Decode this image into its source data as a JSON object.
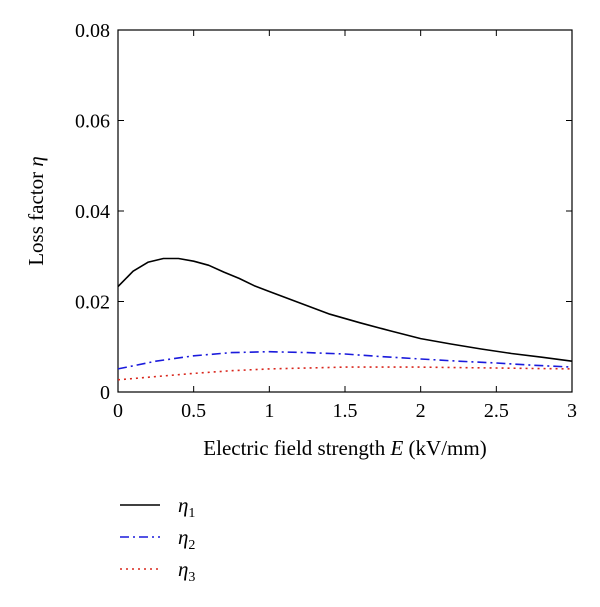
{
  "chart_data": {
    "type": "line",
    "xlabel": "Electric field strength E (kV/mm)",
    "xlabel_parts": {
      "pre": "Electric field strength ",
      "var": "E",
      "post": " (kV/mm)"
    },
    "ylabel": "Loss factor η",
    "ylabel_parts": {
      "pre": "Loss factor ",
      "var": "η"
    },
    "xlim": [
      0,
      3
    ],
    "ylim": [
      0,
      0.08
    ],
    "xticks": [
      0,
      0.5,
      1,
      1.5,
      2,
      2.5,
      3
    ],
    "xtick_labels": [
      "0",
      "0.5",
      "1",
      "1.5",
      "2",
      "2.5",
      "3"
    ],
    "yticks": [
      0,
      0.02,
      0.04,
      0.06,
      0.08
    ],
    "ytick_labels": [
      "0",
      "0.02",
      "0.04",
      "0.06",
      "0.08"
    ],
    "grid": false,
    "legend_position": "below",
    "series": [
      {
        "name": "η1",
        "name_parts": {
          "var": "η",
          "sub": "1"
        },
        "color": "#000000",
        "style": "solid",
        "x": [
          0,
          0.1,
          0.2,
          0.3,
          0.4,
          0.5,
          0.6,
          0.7,
          0.8,
          0.9,
          1.0,
          1.2,
          1.4,
          1.6,
          1.8,
          2.0,
          2.2,
          2.4,
          2.6,
          2.8,
          3.0
        ],
        "y": [
          0.0233,
          0.0267,
          0.0287,
          0.0295,
          0.0295,
          0.0289,
          0.028,
          0.0265,
          0.0251,
          0.0235,
          0.0222,
          0.0197,
          0.0172,
          0.0153,
          0.0135,
          0.0118,
          0.0106,
          0.0095,
          0.0085,
          0.0077,
          0.0068
        ]
      },
      {
        "name": "η2",
        "name_parts": {
          "var": "η",
          "sub": "2"
        },
        "color": "#1a1adc",
        "style": "dashdot",
        "x": [
          0,
          0.25,
          0.5,
          0.75,
          1.0,
          1.25,
          1.5,
          1.75,
          2.0,
          2.25,
          2.5,
          2.75,
          3.0
        ],
        "y": [
          0.0051,
          0.0068,
          0.008,
          0.0087,
          0.0089,
          0.0087,
          0.0084,
          0.0078,
          0.0073,
          0.0068,
          0.0064,
          0.0059,
          0.0055
        ]
      },
      {
        "name": "η3",
        "name_parts": {
          "var": "η",
          "sub": "3"
        },
        "color": "#d9261c",
        "style": "dotted",
        "x": [
          0,
          0.25,
          0.5,
          0.75,
          1.0,
          1.25,
          1.5,
          1.75,
          2.0,
          2.25,
          2.5,
          2.75,
          3.0
        ],
        "y": [
          0.0027,
          0.0034,
          0.0041,
          0.0047,
          0.0051,
          0.0053,
          0.0055,
          0.0055,
          0.0055,
          0.0054,
          0.0053,
          0.0052,
          0.0051
        ]
      }
    ]
  }
}
